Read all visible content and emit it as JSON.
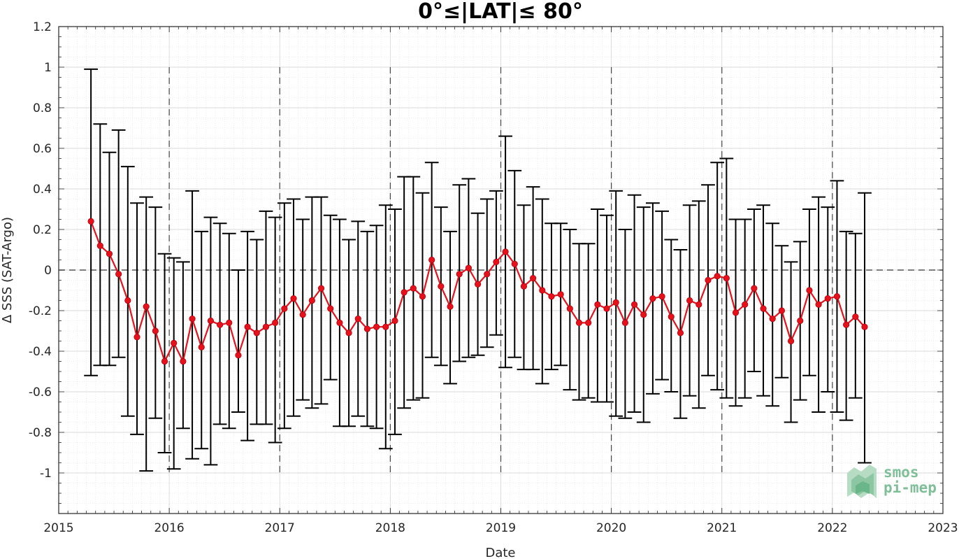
{
  "chart_data": {
    "type": "line",
    "title": "0°≤|LAT|≤ 80°",
    "xlabel": "Date",
    "ylabel": "Δ SSS (SAT-Argo)",
    "xlim": [
      2015,
      2023
    ],
    "ylim": [
      -1.2,
      1.2
    ],
    "xticks": [
      "2015",
      "2016",
      "2017",
      "2018",
      "2019",
      "2020",
      "2021",
      "2022",
      "2023"
    ],
    "yticks": [
      "-1",
      "-0.8",
      "-0.6",
      "-0.4",
      "-0.2",
      "0",
      "0.2",
      "0.4",
      "0.6",
      "0.8",
      "1",
      "1.2"
    ],
    "grid": true,
    "minor_grid": true,
    "reference_line_y": 0,
    "year_markers": [
      "2016",
      "2017",
      "2018",
      "2019",
      "2020",
      "2021",
      "2022"
    ],
    "colors": {
      "series": "#e4121a",
      "errorbar": "#000000",
      "logo": "#7fbf98"
    },
    "series": [
      {
        "x": [
          "2015-04",
          "2015-05",
          "2015-06",
          "2015-07",
          "2015-08",
          "2015-09",
          "2015-10",
          "2015-11",
          "2015-12",
          "2016-01",
          "2016-02",
          "2016-03",
          "2016-04",
          "2016-05",
          "2016-06",
          "2016-07",
          "2016-08",
          "2016-09",
          "2016-10",
          "2016-11",
          "2016-12",
          "2017-01",
          "2017-02",
          "2017-03",
          "2017-04",
          "2017-05",
          "2017-06",
          "2017-07",
          "2017-08",
          "2017-09",
          "2017-10",
          "2017-11",
          "2017-12",
          "2018-01",
          "2018-02",
          "2018-03",
          "2018-04",
          "2018-05",
          "2018-06",
          "2018-07",
          "2018-08",
          "2018-09",
          "2018-10",
          "2018-11",
          "2018-12",
          "2019-01",
          "2019-02",
          "2019-03",
          "2019-04",
          "2019-05",
          "2019-06",
          "2019-07",
          "2019-08",
          "2019-09",
          "2019-10",
          "2019-11",
          "2019-12",
          "2020-01",
          "2020-02",
          "2020-03",
          "2020-04",
          "2020-05",
          "2020-06",
          "2020-07",
          "2020-08",
          "2020-09",
          "2020-10",
          "2020-11",
          "2020-12",
          "2021-01",
          "2021-02",
          "2021-03",
          "2021-04",
          "2021-05",
          "2021-06",
          "2021-07",
          "2021-08",
          "2021-09",
          "2021-10",
          "2021-11",
          "2021-12",
          "2022-01",
          "2022-02",
          "2022-03",
          "2022-04"
        ],
        "values": [
          0.24,
          0.12,
          0.08,
          -0.02,
          -0.15,
          -0.33,
          -0.18,
          -0.3,
          -0.45,
          -0.36,
          -0.45,
          -0.24,
          -0.38,
          -0.25,
          -0.27,
          -0.26,
          -0.42,
          -0.28,
          -0.31,
          -0.28,
          -0.26,
          -0.19,
          -0.14,
          -0.22,
          -0.15,
          -0.09,
          -0.19,
          -0.26,
          -0.31,
          -0.24,
          -0.29,
          -0.28,
          -0.28,
          -0.25,
          -0.11,
          -0.09,
          -0.13,
          0.05,
          -0.08,
          -0.18,
          -0.02,
          0.01,
          -0.07,
          -0.02,
          0.04,
          0.09,
          0.03,
          -0.08,
          -0.04,
          -0.1,
          -0.13,
          -0.12,
          -0.19,
          -0.26,
          -0.26,
          -0.17,
          -0.19,
          -0.16,
          -0.26,
          -0.17,
          -0.22,
          -0.14,
          -0.13,
          -0.23,
          -0.31,
          -0.15,
          -0.17,
          -0.05,
          -0.03,
          -0.04,
          -0.21,
          -0.17,
          -0.09,
          -0.19,
          -0.24,
          -0.2,
          -0.35,
          -0.25,
          -0.1,
          -0.17,
          -0.14,
          -0.13,
          -0.27,
          -0.23,
          -0.28
        ],
        "upper": [
          0.99,
          0.72,
          0.58,
          0.69,
          0.51,
          0.33,
          0.36,
          0.31,
          0.08,
          0.06,
          0.04,
          0.39,
          0.19,
          0.26,
          0.23,
          0.18,
          0.0,
          0.19,
          0.15,
          0.29,
          0.26,
          0.33,
          0.35,
          0.25,
          0.36,
          0.36,
          0.27,
          0.25,
          0.15,
          0.24,
          0.19,
          0.22,
          0.32,
          0.3,
          0.46,
          0.46,
          0.38,
          0.53,
          0.31,
          0.19,
          0.42,
          0.45,
          0.28,
          0.35,
          0.39,
          0.66,
          0.49,
          0.32,
          0.41,
          0.35,
          0.23,
          0.23,
          0.2,
          0.13,
          0.13,
          0.3,
          0.27,
          0.39,
          0.2,
          0.37,
          0.31,
          0.33,
          0.29,
          0.15,
          0.1,
          0.32,
          0.34,
          0.42,
          0.53,
          0.55,
          0.25,
          0.25,
          0.3,
          0.32,
          0.23,
          0.12,
          0.04,
          0.14,
          0.3,
          0.36,
          0.31,
          0.44,
          0.19,
          0.18,
          0.38
        ],
        "lower": [
          -0.52,
          -0.47,
          -0.47,
          -0.43,
          -0.72,
          -0.81,
          -0.99,
          -0.73,
          -0.9,
          -0.98,
          -0.78,
          -0.93,
          -0.88,
          -0.96,
          -0.76,
          -0.78,
          -0.7,
          -0.84,
          -0.76,
          -0.76,
          -0.85,
          -0.78,
          -0.72,
          -0.64,
          -0.68,
          -0.66,
          -0.54,
          -0.77,
          -0.77,
          -0.72,
          -0.77,
          -0.78,
          -0.88,
          -0.81,
          -0.68,
          -0.64,
          -0.63,
          -0.43,
          -0.47,
          -0.56,
          -0.45,
          -0.43,
          -0.42,
          -0.38,
          -0.32,
          -0.48,
          -0.43,
          -0.49,
          -0.49,
          -0.56,
          -0.49,
          -0.47,
          -0.59,
          -0.64,
          -0.63,
          -0.65,
          -0.65,
          -0.72,
          -0.73,
          -0.7,
          -0.75,
          -0.61,
          -0.54,
          -0.6,
          -0.73,
          -0.62,
          -0.68,
          -0.52,
          -0.59,
          -0.63,
          -0.67,
          -0.63,
          -0.5,
          -0.62,
          -0.67,
          -0.53,
          -0.75,
          -0.64,
          -0.52,
          -0.7,
          -0.6,
          -0.7,
          -0.74,
          -0.63,
          -0.95
        ]
      }
    ]
  },
  "logo": {
    "line1": "smos",
    "line2": "pi-mep"
  }
}
